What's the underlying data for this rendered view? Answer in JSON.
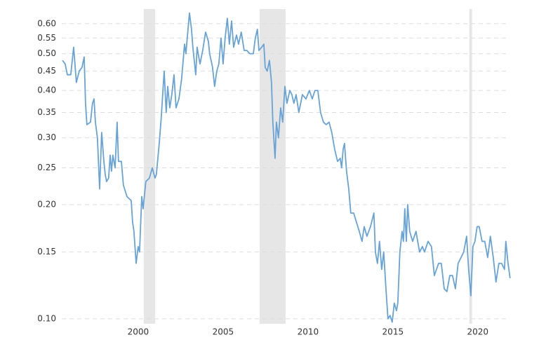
{
  "chart_data": {
    "type": "line",
    "log_y": true,
    "grid": true,
    "xlim": [
      1995.5,
      2021.95
    ],
    "xticks": [
      2000,
      2005,
      2010,
      2015,
      2020
    ],
    "ylim": [
      0.097,
      0.65
    ],
    "yticks": [
      {
        "value": 0.1,
        "label": "0.10"
      },
      {
        "value": 0.15,
        "label": "0.15"
      },
      {
        "value": 0.2,
        "label": "0.20"
      },
      {
        "value": 0.25,
        "label": "0.25"
      },
      {
        "value": 0.3,
        "label": "0.30"
      },
      {
        "value": 0.35,
        "label": "0.35"
      },
      {
        "value": 0.4,
        "label": "0.40"
      },
      {
        "value": 0.45,
        "label": "0.45"
      },
      {
        "value": 0.5,
        "label": "0.50"
      },
      {
        "value": 0.55,
        "label": "0.55"
      },
      {
        "value": 0.6,
        "label": "0.60"
      }
    ],
    "shaded_ranges": [
      [
        2000.33,
        2001.0
      ],
      [
        2007.15,
        2008.68
      ],
      [
        2019.5,
        2019.66
      ]
    ],
    "shade_color": "#e6e6e6",
    "x": [
      1995.54,
      1995.7,
      1995.83,
      1996.03,
      1996.2,
      1996.36,
      1996.53,
      1996.69,
      1996.82,
      1996.9,
      1996.98,
      1997.19,
      1997.31,
      1997.4,
      1997.48,
      1997.6,
      1997.73,
      1997.85,
      1997.98,
      1998.06,
      1998.14,
      1998.26,
      1998.35,
      1998.43,
      1998.51,
      1998.64,
      1998.76,
      1998.84,
      1999.01,
      1999.13,
      1999.34,
      1999.59,
      1999.67,
      1999.75,
      1999.88,
      2000.0,
      2000.08,
      2000.21,
      2000.29,
      2000.45,
      2000.66,
      2000.83,
      2000.99,
      2001.07,
      2001.24,
      2001.36,
      2001.53,
      2001.65,
      2001.74,
      2001.86,
      2001.98,
      2002.11,
      2002.23,
      2002.4,
      2002.56,
      2002.73,
      2002.81,
      2002.89,
      2003.02,
      2003.14,
      2003.22,
      2003.39,
      2003.47,
      2003.64,
      2003.8,
      2003.97,
      2004.13,
      2004.21,
      2004.38,
      2004.5,
      2004.63,
      2004.75,
      2004.88,
      2005.0,
      2005.12,
      2005.25,
      2005.37,
      2005.5,
      2005.62,
      2005.79,
      2005.91,
      2006.07,
      2006.24,
      2006.4,
      2006.57,
      2006.78,
      2006.9,
      2007.02,
      2007.11,
      2007.27,
      2007.4,
      2007.48,
      2007.6,
      2007.73,
      2007.85,
      2007.93,
      2008.06,
      2008.14,
      2008.26,
      2008.39,
      2008.51,
      2008.64,
      2008.76,
      2008.93,
      2009.05,
      2009.17,
      2009.3,
      2009.46,
      2009.67,
      2009.88,
      2010.08,
      2010.25,
      2010.41,
      2010.58,
      2010.74,
      2010.91,
      2011.07,
      2011.24,
      2011.4,
      2011.57,
      2011.74,
      2011.9,
      2011.98,
      2012.07,
      2012.15,
      2012.27,
      2012.4,
      2012.52,
      2012.69,
      2012.85,
      2013.02,
      2013.18,
      2013.31,
      2013.47,
      2013.68,
      2013.88,
      2013.97,
      2014.09,
      2014.21,
      2014.34,
      2014.46,
      2014.59,
      2014.71,
      2014.83,
      2014.96,
      2015.08,
      2015.21,
      2015.29,
      2015.41,
      2015.54,
      2015.62,
      2015.7,
      2015.79,
      2015.87,
      2015.99,
      2016.16,
      2016.36,
      2016.57,
      2016.74,
      2016.86,
      2017.07,
      2017.27,
      2017.44,
      2017.69,
      2017.85,
      2018.02,
      2018.18,
      2018.35,
      2018.51,
      2018.68,
      2018.84,
      2019.01,
      2019.17,
      2019.34,
      2019.46,
      2019.59,
      2019.71,
      2019.83,
      2019.96,
      2020.08,
      2020.25,
      2020.41,
      2020.58,
      2020.74,
      2020.91,
      2021.07,
      2021.24,
      2021.4,
      2021.57,
      2021.65,
      2021.78,
      2021.9
    ],
    "series": [
      {
        "color": "#69a3d6",
        "values": [
          0.48,
          0.47,
          0.44,
          0.44,
          0.52,
          0.42,
          0.45,
          0.46,
          0.49,
          0.37,
          0.325,
          0.33,
          0.37,
          0.38,
          0.33,
          0.3,
          0.22,
          0.31,
          0.26,
          0.24,
          0.23,
          0.235,
          0.27,
          0.245,
          0.27,
          0.25,
          0.33,
          0.26,
          0.26,
          0.225,
          0.21,
          0.205,
          0.18,
          0.17,
          0.14,
          0.155,
          0.15,
          0.21,
          0.195,
          0.23,
          0.235,
          0.25,
          0.235,
          0.24,
          0.29,
          0.34,
          0.45,
          0.35,
          0.41,
          0.36,
          0.39,
          0.44,
          0.36,
          0.38,
          0.43,
          0.53,
          0.5,
          0.55,
          0.64,
          0.58,
          0.52,
          0.44,
          0.52,
          0.47,
          0.51,
          0.57,
          0.54,
          0.5,
          0.46,
          0.41,
          0.45,
          0.47,
          0.55,
          0.47,
          0.55,
          0.62,
          0.53,
          0.61,
          0.52,
          0.56,
          0.53,
          0.57,
          0.51,
          0.51,
          0.5,
          0.5,
          0.55,
          0.58,
          0.51,
          0.52,
          0.53,
          0.46,
          0.45,
          0.48,
          0.42,
          0.33,
          0.265,
          0.33,
          0.3,
          0.36,
          0.33,
          0.41,
          0.37,
          0.4,
          0.39,
          0.37,
          0.39,
          0.35,
          0.39,
          0.38,
          0.4,
          0.38,
          0.4,
          0.4,
          0.35,
          0.33,
          0.325,
          0.33,
          0.31,
          0.28,
          0.26,
          0.265,
          0.25,
          0.28,
          0.29,
          0.245,
          0.22,
          0.19,
          0.19,
          0.18,
          0.17,
          0.16,
          0.175,
          0.165,
          0.175,
          0.19,
          0.15,
          0.14,
          0.16,
          0.135,
          0.15,
          0.12,
          0.1,
          0.102,
          0.098,
          0.11,
          0.105,
          0.11,
          0.15,
          0.17,
          0.16,
          0.195,
          0.16,
          0.2,
          0.17,
          0.16,
          0.17,
          0.15,
          0.155,
          0.15,
          0.16,
          0.155,
          0.13,
          0.14,
          0.14,
          0.12,
          0.118,
          0.13,
          0.13,
          0.12,
          0.14,
          0.145,
          0.15,
          0.165,
          0.135,
          0.115,
          0.155,
          0.16,
          0.175,
          0.175,
          0.16,
          0.16,
          0.145,
          0.165,
          0.145,
          0.125,
          0.14,
          0.14,
          0.135,
          0.16,
          0.14,
          0.128
        ]
      }
    ]
  }
}
